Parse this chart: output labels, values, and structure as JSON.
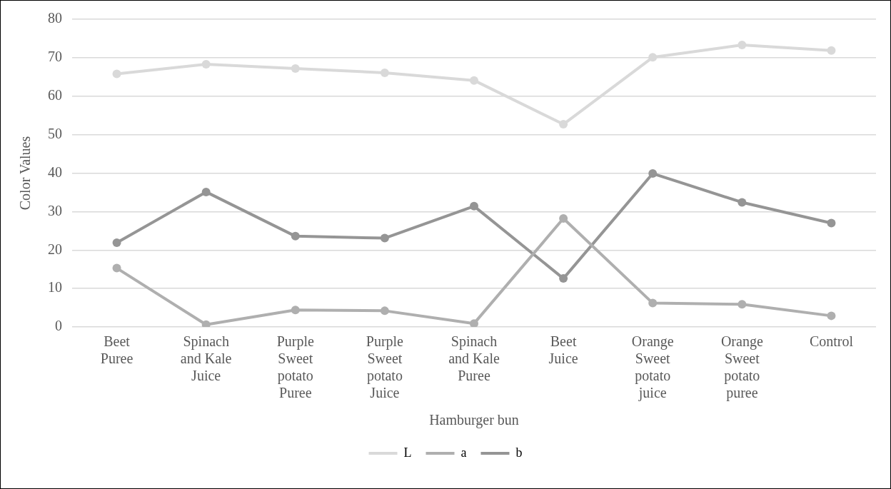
{
  "chart_data": {
    "type": "line",
    "xlabel": "Hamburger bun",
    "ylabel": "Color Values",
    "categories": [
      "Beet Puree",
      "Spinach and Kale Juice",
      "Purple Sweet potato Puree",
      "Purple Sweet potato Juice",
      "Spinach and Kale Puree",
      "Beet Juice",
      "Orange Sweet potato juice",
      "Orange Sweet potato puree",
      "Control"
    ],
    "series": [
      {
        "name": "L",
        "color": "#d9d9d9",
        "values": [
          65.8,
          68.3,
          67.2,
          66.1,
          64.1,
          52.7,
          70.1,
          73.3,
          71.9
        ]
      },
      {
        "name": "a",
        "color": "#afafaf",
        "values": [
          15.3,
          0.6,
          4.4,
          4.2,
          0.9,
          28.2,
          6.2,
          5.9,
          2.9
        ]
      },
      {
        "name": "b",
        "color": "#959595",
        "values": [
          21.9,
          35.1,
          23.6,
          23.1,
          31.4,
          12.6,
          39.9,
          32.4,
          27.0
        ]
      }
    ],
    "ylim": [
      0,
      80
    ],
    "yticks": [
      0,
      10,
      20,
      30,
      40,
      50,
      60,
      70,
      80
    ],
    "grid": "y",
    "legend": "bottom",
    "marker": "circle",
    "line_style": "solid"
  }
}
